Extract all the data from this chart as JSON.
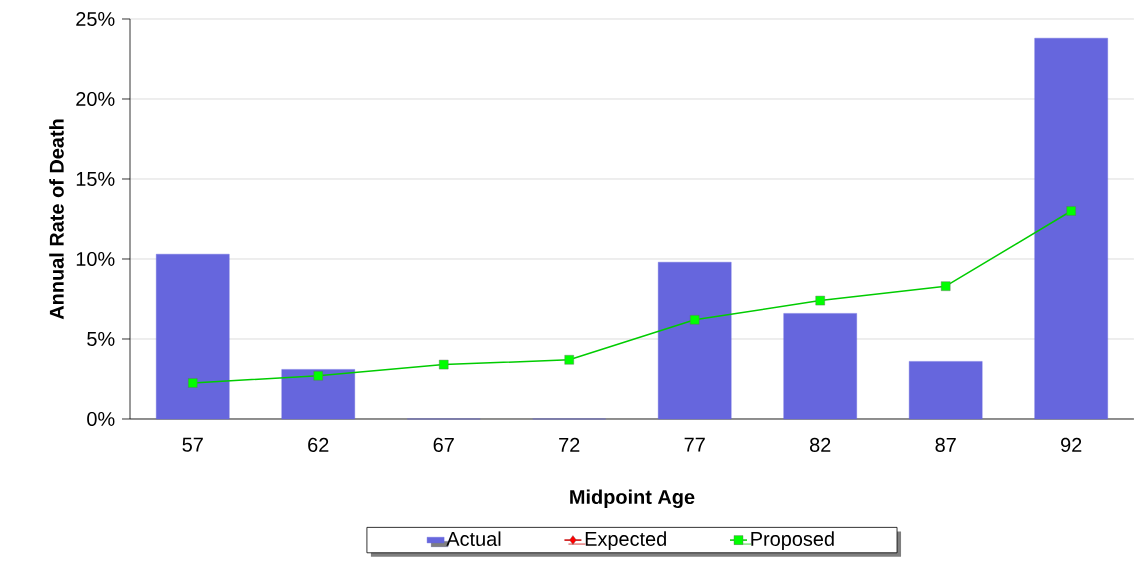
{
  "chart_data": {
    "type": "bar",
    "xlabel": "Midpoint Age",
    "ylabel": "Annual Rate of Death",
    "categories": [
      "57",
      "62",
      "67",
      "72",
      "77",
      "82",
      "87",
      "92"
    ],
    "series": [
      {
        "name": "Actual",
        "color": "#6666dd",
        "values": [
          10.3,
          3.1,
          0,
          0,
          9.8,
          6.6,
          3.6,
          23.8
        ]
      },
      {
        "name": "Expected",
        "type": "line",
        "color": "#ff0000",
        "marker": "diamond",
        "values": [
          null,
          null,
          null,
          null,
          null,
          null,
          null,
          null
        ]
      },
      {
        "name": "Proposed",
        "type": "line",
        "color": "#00ff00",
        "marker": "square",
        "values": [
          2.25,
          2.7,
          3.4,
          3.7,
          6.2,
          7.4,
          8.3,
          13.0
        ]
      }
    ],
    "ylim": [
      0,
      25
    ],
    "yticks": [
      {
        "value": 0,
        "label": "0%"
      },
      {
        "value": 5,
        "label": "5%"
      },
      {
        "value": 10,
        "label": "10%"
      },
      {
        "value": 15,
        "label": "15%"
      },
      {
        "value": 20,
        "label": "20%"
      },
      {
        "value": 25,
        "label": "25%"
      }
    ],
    "grid": "y",
    "legend": "bottom"
  }
}
